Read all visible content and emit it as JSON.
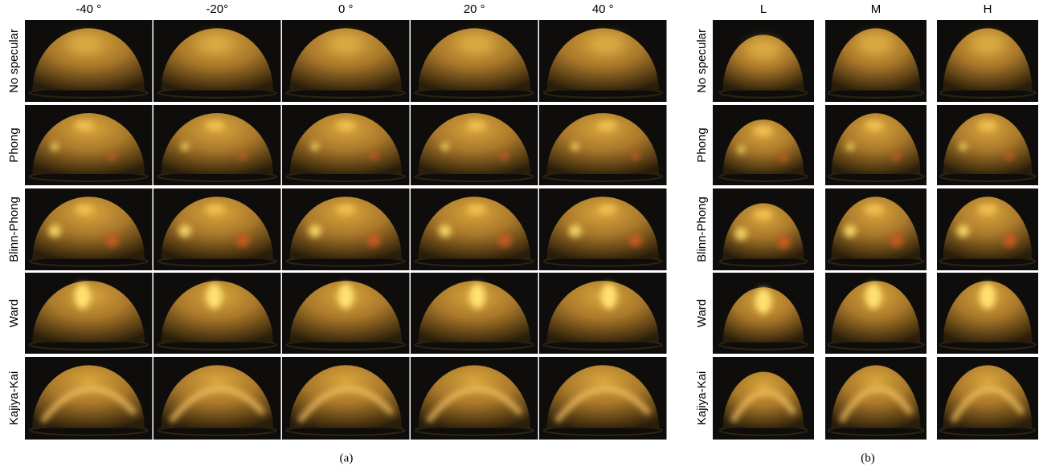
{
  "panel_a": {
    "columns": [
      "-40 °",
      "-20°",
      "0 °",
      "20 °",
      "40 °"
    ],
    "rows": [
      "No specular",
      "Phong",
      "Blinn-Phong",
      "Ward",
      "Kajiya-Kai"
    ],
    "caption": "(a)"
  },
  "panel_b": {
    "columns": [
      "L",
      "M",
      "H"
    ],
    "rows": [
      "No specular",
      "Phong",
      "Blinn-Phong",
      "Ward",
      "Kajiya-Kai"
    ],
    "caption": "(b)"
  }
}
